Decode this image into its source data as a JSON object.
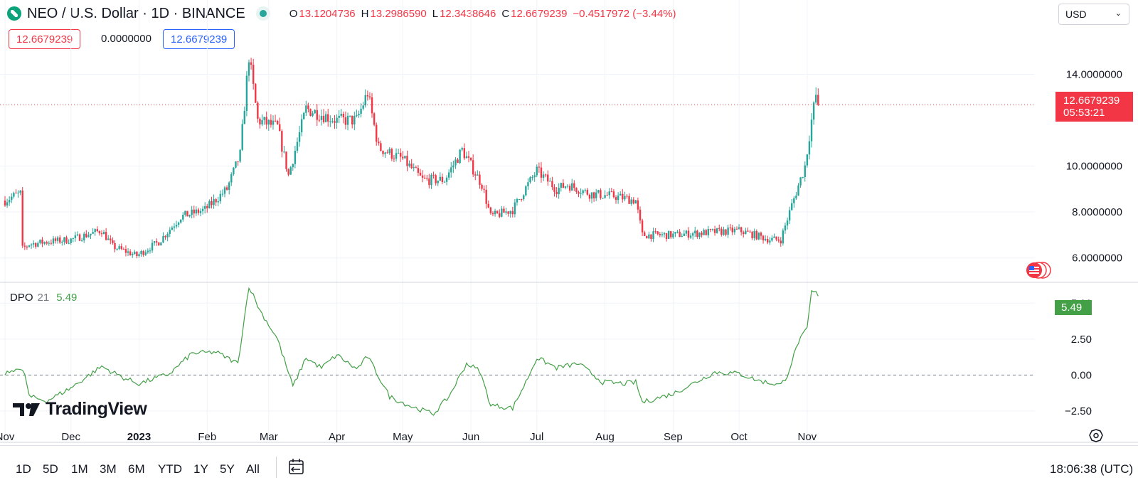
{
  "header": {
    "title": "NEO / U.S. Dollar · 1D · BINANCE",
    "ohlc": {
      "o_label": "O",
      "o": "13.1204736",
      "h_label": "H",
      "h": "13.2986590",
      "l_label": "L",
      "l": "12.3438646",
      "c_label": "C",
      "c": "12.6679239",
      "change": "−0.4517972 (−3.44%)"
    }
  },
  "currency": "USD",
  "value_boxes": {
    "red": "12.6679239",
    "zero": "0.0000000",
    "blue": "12.6679239"
  },
  "price_tag": {
    "price": "12.6679239",
    "countdown": "05:53:21"
  },
  "dpo": {
    "name": "DPO",
    "length": "21",
    "value": "5.49",
    "tag": "5.49"
  },
  "brand": {
    "wordmark": "TradingView"
  },
  "time_axis": [
    {
      "label": "Nov",
      "bold": false
    },
    {
      "label": "Dec",
      "bold": false
    },
    {
      "label": "2023",
      "bold": true
    },
    {
      "label": "Feb",
      "bold": false
    },
    {
      "label": "Mar",
      "bold": false
    },
    {
      "label": "Apr",
      "bold": false
    },
    {
      "label": "May",
      "bold": false
    },
    {
      "label": "Jun",
      "bold": false
    },
    {
      "label": "Jul",
      "bold": false
    },
    {
      "label": "Aug",
      "bold": false
    },
    {
      "label": "Sep",
      "bold": false
    },
    {
      "label": "Oct",
      "bold": false
    },
    {
      "label": "Nov",
      "bold": false
    }
  ],
  "range_buttons": [
    "1D",
    "5D",
    "1M",
    "3M",
    "6M",
    "YTD",
    "1Y",
    "5Y",
    "All"
  ],
  "clock": "18:06:38 (UTC)",
  "icons": {
    "settings": "gear-icon",
    "date_range": "date-range-icon",
    "flag": "us-flag-icon",
    "logo": "neo-logo-icon"
  },
  "colors": {
    "up": "#26a69a",
    "down": "#f23645",
    "dpo_line": "#43a047",
    "accent_blue": "#2962ff"
  },
  "chart_data": [
    {
      "type": "candlestick",
      "title": "NEO / U.S. Dollar · 1D · BINANCE",
      "x_range": [
        "2022-11-01",
        "2023-11-08"
      ],
      "ylim": [
        5.0,
        16.0
      ],
      "y_ticks": [
        "14.0000000",
        "10.0000000",
        "8.0000000",
        "6.0000000"
      ],
      "y_tick_values": [
        14,
        10,
        8,
        6
      ],
      "last_price": 12.6679239,
      "grid": true,
      "close_series": [
        {
          "date": "2022-11-01",
          "close": 8.5
        },
        {
          "date": "2022-11-05",
          "close": 8.7
        },
        {
          "date": "2022-11-08",
          "close": 8.8
        },
        {
          "date": "2022-11-09",
          "close": 6.4
        },
        {
          "date": "2022-11-12",
          "close": 6.6
        },
        {
          "date": "2022-11-20",
          "close": 6.7
        },
        {
          "date": "2022-12-01",
          "close": 6.8
        },
        {
          "date": "2022-12-15",
          "close": 7.2
        },
        {
          "date": "2022-12-20",
          "close": 6.5
        },
        {
          "date": "2022-12-31",
          "close": 6.1
        },
        {
          "date": "2023-01-10",
          "close": 6.7
        },
        {
          "date": "2023-01-20",
          "close": 7.8
        },
        {
          "date": "2023-01-31",
          "close": 8.1
        },
        {
          "date": "2023-02-10",
          "close": 9.0
        },
        {
          "date": "2023-02-16",
          "close": 10.5
        },
        {
          "date": "2023-02-20",
          "close": 14.8
        },
        {
          "date": "2023-02-24",
          "close": 12.0
        },
        {
          "date": "2023-03-05",
          "close": 11.7
        },
        {
          "date": "2023-03-10",
          "close": 9.6
        },
        {
          "date": "2023-03-18",
          "close": 12.5
        },
        {
          "date": "2023-04-01",
          "close": 12.0
        },
        {
          "date": "2023-04-10",
          "close": 12.0
        },
        {
          "date": "2023-04-15",
          "close": 13.2
        },
        {
          "date": "2023-04-20",
          "close": 10.8
        },
        {
          "date": "2023-05-01",
          "close": 10.3
        },
        {
          "date": "2023-05-10",
          "close": 9.4
        },
        {
          "date": "2023-05-20",
          "close": 9.4
        },
        {
          "date": "2023-05-28",
          "close": 10.7
        },
        {
          "date": "2023-06-06",
          "close": 9.2
        },
        {
          "date": "2023-06-10",
          "close": 7.8
        },
        {
          "date": "2023-06-20",
          "close": 8.1
        },
        {
          "date": "2023-06-25",
          "close": 8.9
        },
        {
          "date": "2023-07-01",
          "close": 9.8
        },
        {
          "date": "2023-07-10",
          "close": 9.0
        },
        {
          "date": "2023-07-15",
          "close": 9.2
        },
        {
          "date": "2023-07-25",
          "close": 8.8
        },
        {
          "date": "2023-08-05",
          "close": 8.7
        },
        {
          "date": "2023-08-15",
          "close": 8.5
        },
        {
          "date": "2023-08-18",
          "close": 7.0
        },
        {
          "date": "2023-09-01",
          "close": 7.0
        },
        {
          "date": "2023-09-15",
          "close": 7.1
        },
        {
          "date": "2023-10-01",
          "close": 7.2
        },
        {
          "date": "2023-10-15",
          "close": 6.8
        },
        {
          "date": "2023-10-20",
          "close": 6.8
        },
        {
          "date": "2023-10-25",
          "close": 8.3
        },
        {
          "date": "2023-10-31",
          "close": 10.0
        },
        {
          "date": "2023-11-03",
          "close": 12.0
        },
        {
          "date": "2023-11-05",
          "close": 13.1
        },
        {
          "date": "2023-11-06",
          "close": 12.67
        }
      ]
    },
    {
      "type": "line",
      "name": "DPO 21",
      "ylim": [
        -3.2,
        6.4
      ],
      "y_ticks": [
        "5.00",
        "2.50",
        "0.00",
        "−2.50"
      ],
      "y_tick_values": [
        5.0,
        2.5,
        0.0,
        -2.5
      ],
      "zero_line": true,
      "series": [
        {
          "name": "DPO",
          "points": [
            {
              "date": "2022-11-01",
              "y": 0.0
            },
            {
              "date": "2022-11-06",
              "y": 0.5
            },
            {
              "date": "2022-11-10",
              "y": 0.1
            },
            {
              "date": "2022-11-12",
              "y": -1.5
            },
            {
              "date": "2022-11-20",
              "y": -1.8
            },
            {
              "date": "2022-12-01",
              "y": -0.9
            },
            {
              "date": "2022-12-15",
              "y": 0.6
            },
            {
              "date": "2022-12-25",
              "y": -0.2
            },
            {
              "date": "2023-01-01",
              "y": -0.6
            },
            {
              "date": "2023-01-15",
              "y": 0.1
            },
            {
              "date": "2023-01-25",
              "y": 1.5
            },
            {
              "date": "2023-02-05",
              "y": 1.6
            },
            {
              "date": "2023-02-15",
              "y": 0.8
            },
            {
              "date": "2023-02-20",
              "y": 6.2
            },
            {
              "date": "2023-02-25",
              "y": 4.5
            },
            {
              "date": "2023-03-05",
              "y": 2.5
            },
            {
              "date": "2023-03-12",
              "y": -0.8
            },
            {
              "date": "2023-03-18",
              "y": 1.2
            },
            {
              "date": "2023-03-25",
              "y": 0.5
            },
            {
              "date": "2023-04-01",
              "y": 1.4
            },
            {
              "date": "2023-04-10",
              "y": 0.4
            },
            {
              "date": "2023-04-15",
              "y": 1.3
            },
            {
              "date": "2023-04-25",
              "y": -1.5
            },
            {
              "date": "2023-05-05",
              "y": -2.2
            },
            {
              "date": "2023-05-15",
              "y": -2.7
            },
            {
              "date": "2023-05-22",
              "y": -1.5
            },
            {
              "date": "2023-05-30",
              "y": 0.8
            },
            {
              "date": "2023-06-05",
              "y": 0.3
            },
            {
              "date": "2023-06-10",
              "y": -2.1
            },
            {
              "date": "2023-06-20",
              "y": -2.3
            },
            {
              "date": "2023-06-26",
              "y": -0.5
            },
            {
              "date": "2023-07-01",
              "y": 1.2
            },
            {
              "date": "2023-07-10",
              "y": 0.5
            },
            {
              "date": "2023-07-20",
              "y": 0.8
            },
            {
              "date": "2023-07-31",
              "y": -0.5
            },
            {
              "date": "2023-08-10",
              "y": -0.6
            },
            {
              "date": "2023-08-15",
              "y": -0.5
            },
            {
              "date": "2023-08-18",
              "y": -1.9
            },
            {
              "date": "2023-09-01",
              "y": -1.3
            },
            {
              "date": "2023-09-10",
              "y": -0.6
            },
            {
              "date": "2023-09-20",
              "y": 0.2
            },
            {
              "date": "2023-10-01",
              "y": 0.1
            },
            {
              "date": "2023-10-10",
              "y": -0.4
            },
            {
              "date": "2023-10-20",
              "y": -0.7
            },
            {
              "date": "2023-10-23",
              "y": 0.0
            },
            {
              "date": "2023-10-28",
              "y": 2.3
            },
            {
              "date": "2023-11-01",
              "y": 3.2
            },
            {
              "date": "2023-11-03",
              "y": 5.8
            },
            {
              "date": "2023-11-05",
              "y": 5.7
            },
            {
              "date": "2023-11-06",
              "y": 5.49
            }
          ]
        }
      ]
    }
  ]
}
